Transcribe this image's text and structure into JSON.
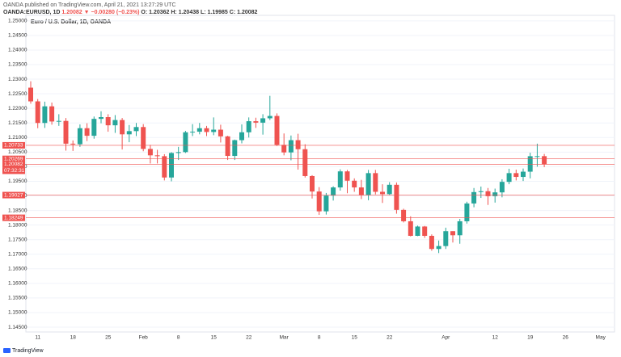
{
  "header": {
    "publisher": "OANDA published on TradingView.com, April 21, 2021 13:27:29 UTC",
    "symbol": "OANDA:EURUSD, 1D",
    "price": "1.20082",
    "change": "▼ −0.00280 (−0.23%)",
    "open": "O: 1.20362",
    "high": "H: 1.20438",
    "low": "L: 1.19985",
    "close": "C: 1.20082"
  },
  "footer": {
    "logo": "TradingView"
  },
  "chart_data": {
    "type": "candlestick",
    "title": "Euro / U.S. Dollar, 1D, OANDA",
    "categories": [
      null,
      "11",
      null,
      null,
      null,
      null,
      "18",
      null,
      null,
      null,
      null,
      "25",
      null,
      null,
      null,
      null,
      "Feb",
      null,
      null,
      null,
      null,
      "8",
      null,
      null,
      null,
      null,
      "15",
      null,
      null,
      null,
      null,
      "22",
      null,
      null,
      null,
      null,
      "Mar",
      null,
      null,
      null,
      null,
      "8",
      null,
      null,
      null,
      null,
      "15",
      null,
      null,
      null,
      null,
      "22",
      null,
      null,
      null,
      null,
      null,
      null,
      null,
      "Apr",
      null,
      null,
      null,
      null,
      null,
      null,
      "12",
      null,
      null,
      null,
      null,
      "19",
      null,
      null,
      null,
      null,
      "26",
      null,
      null,
      null,
      null,
      "May"
    ],
    "open": [
      1.2271,
      1.2224,
      1.215,
      1.2207,
      1.2155,
      1.2157,
      1.2079,
      1.2077,
      1.2132,
      1.2106,
      1.2164,
      1.217,
      1.2142,
      1.216,
      1.2111,
      1.2122,
      1.2136,
      1.2061,
      1.2039,
      1.2036,
      1.1963,
      1.2047,
      1.205,
      1.2118,
      1.212,
      1.2132,
      1.2119,
      1.2127,
      1.2104,
      1.2037,
      1.2091,
      1.2118,
      1.2156,
      1.2151,
      1.2166,
      1.2174,
      1.2075,
      1.2049,
      1.2091,
      1.206,
      1.1968,
      1.1915,
      1.1847,
      1.1901,
      1.1929,
      1.1984,
      1.1952,
      1.1929,
      1.1903,
      1.1978,
      1.1914,
      1.1906,
      1.1938,
      1.1852,
      1.1813,
      1.1763,
      1.1795,
      1.1763,
      1.1718,
      1.1728,
      1.1779,
      1.1765,
      1.1813,
      1.1874,
      1.1913,
      1.1916,
      1.1899,
      1.1912,
      1.1948,
      1.1978,
      1.1965,
      1.1983,
      1.2034,
      1.20362,
      null,
      null,
      null,
      null,
      null,
      null,
      null,
      null
    ],
    "high": [
      1.2293,
      1.2232,
      1.2223,
      1.222,
      1.218,
      1.2167,
      1.209,
      1.2145,
      1.2149,
      1.2172,
      1.219,
      1.218,
      1.2177,
      1.2167,
      1.2143,
      1.215,
      1.2146,
      1.2075,
      1.2058,
      1.2043,
      1.205,
      1.2068,
      1.2123,
      1.2146,
      1.215,
      1.214,
      1.2169,
      1.2144,
      1.2106,
      1.2093,
      1.2145,
      1.2169,
      1.2168,
      1.218,
      1.2243,
      1.2183,
      1.2114,
      1.2107,
      1.2113,
      1.2077,
      1.1971,
      1.193,
      1.191,
      1.1933,
      1.1991,
      1.1989,
      1.196,
      1.1955,
      1.1989,
      1.1989,
      1.194,
      1.1947,
      1.1946,
      1.1856,
      1.183,
      1.1798,
      1.1797,
      1.1768,
      1.1747,
      1.1791,
      1.1779,
      1.1821,
      1.188,
      1.1927,
      1.1932,
      1.1927,
      1.1925,
      1.1957,
      1.1993,
      1.199,
      1.1994,
      1.2048,
      1.2079,
      1.20438,
      null,
      null,
      null,
      null,
      null,
      null,
      null,
      null
    ],
    "low": [
      1.2216,
      1.2132,
      1.2133,
      1.2144,
      1.214,
      1.2055,
      1.2054,
      1.2068,
      1.2088,
      1.2096,
      1.2149,
      1.212,
      1.2116,
      1.2059,
      1.2084,
      1.2105,
      1.2053,
      1.2011,
      1.2011,
      1.1953,
      1.195,
      1.2023,
      1.2047,
      1.2105,
      1.2111,
      1.2105,
      1.2108,
      1.2083,
      1.2023,
      1.2023,
      1.208,
      1.21,
      1.2133,
      1.211,
      1.216,
      1.2071,
      1.2039,
      1.2022,
      1.199,
      1.1963,
      1.1891,
      1.1835,
      1.1836,
      1.1884,
      1.1918,
      1.1909,
      1.1914,
      1.1889,
      1.1885,
      1.1905,
      1.1876,
      1.1903,
      1.1839,
      1.1809,
      1.1761,
      1.1762,
      1.1756,
      1.1712,
      1.1704,
      1.1718,
      1.174,
      1.1736,
      1.1805,
      1.1861,
      1.1893,
      1.1869,
      1.1877,
      1.1895,
      1.194,
      1.1953,
      1.1951,
      1.196,
      1.2,
      1.19985,
      null,
      null,
      null,
      null,
      null,
      null,
      null,
      null
    ],
    "close": [
      1.2224,
      1.215,
      1.2207,
      1.2155,
      1.2157,
      1.2079,
      1.2077,
      1.2132,
      1.2106,
      1.2164,
      1.217,
      1.2142,
      1.216,
      1.2111,
      1.2122,
      1.2136,
      1.2061,
      1.2039,
      1.2036,
      1.1963,
      1.2047,
      1.205,
      1.2118,
      1.212,
      1.2132,
      1.2119,
      1.2127,
      1.2104,
      1.2037,
      1.2091,
      1.2118,
      1.2156,
      1.2151,
      1.2166,
      1.2174,
      1.2075,
      1.2049,
      1.2091,
      1.206,
      1.1968,
      1.1915,
      1.1847,
      1.1901,
      1.1929,
      1.1984,
      1.1952,
      1.1929,
      1.1903,
      1.1978,
      1.1914,
      1.1906,
      1.1938,
      1.1852,
      1.1813,
      1.1763,
      1.1795,
      1.1763,
      1.1718,
      1.1728,
      1.1779,
      1.1765,
      1.1813,
      1.1874,
      1.1913,
      1.1916,
      1.1899,
      1.1912,
      1.1948,
      1.1978,
      1.1965,
      1.1983,
      1.2036,
      1.20362,
      1.20082,
      null,
      null,
      null,
      null,
      null,
      null,
      null,
      null
    ],
    "up_color": "#26a69a",
    "down_color": "#ef5350",
    "price_lines": [
      1.20733,
      1.20269,
      1.20082,
      1.19027,
      1.18249
    ],
    "line_color": "#ef5350",
    "countdown": "07:32:31",
    "ylim": [
      1.14335,
      1.25189
    ],
    "yticks": [
      {
        "value": 1.145,
        "label": "1.14500"
      },
      {
        "value": 1.15,
        "label": "1.15000"
      },
      {
        "value": 1.155,
        "label": "1.15500"
      },
      {
        "value": 1.16,
        "label": "1.16000"
      },
      {
        "value": 1.165,
        "label": "1.16500"
      },
      {
        "value": 1.17,
        "label": "1.17000"
      },
      {
        "value": 1.175,
        "label": "1.17500"
      },
      {
        "value": 1.18,
        "label": "1.18000"
      },
      {
        "value": 1.185,
        "label": "1.18500"
      },
      {
        "value": 1.19,
        "label": "1.19000"
      },
      {
        "value": 1.195,
        "label": "1.19500"
      },
      {
        "value": 1.2,
        "label": "1.20000"
      },
      {
        "value": 1.205,
        "label": "1.20500"
      },
      {
        "value": 1.21,
        "label": "1.21000"
      },
      {
        "value": 1.215,
        "label": "1.21500"
      },
      {
        "value": 1.22,
        "label": "1.22000"
      },
      {
        "value": 1.225,
        "label": "1.22500"
      },
      {
        "value": 1.23,
        "label": "1.23000"
      },
      {
        "value": 1.235,
        "label": "1.23500"
      },
      {
        "value": 1.24,
        "label": "1.24000"
      },
      {
        "value": 1.245,
        "label": "1.24500"
      },
      {
        "value": 1.25,
        "label": "1.25000"
      }
    ],
    "grid": true
  }
}
